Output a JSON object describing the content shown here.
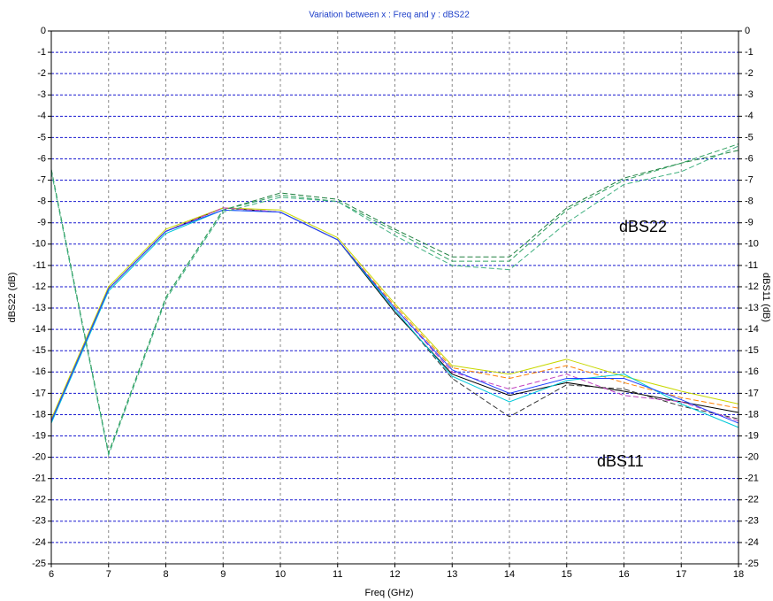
{
  "chart_data": {
    "type": "line",
    "title": "Variation between  x : Freq and y : dBS22",
    "x_label": "Freq (GHz)",
    "y_label": "dBS22 (dB)",
    "y2_label": "dBS11 (dB)",
    "annotations": [
      "dBS22",
      "dBS11"
    ],
    "x": [
      6,
      7,
      8,
      9,
      10,
      11,
      12,
      13,
      14,
      15,
      16,
      17,
      18
    ],
    "xlim": [
      6,
      18
    ],
    "xticks": [
      6,
      7,
      8,
      9,
      10,
      11,
      12,
      13,
      14,
      15,
      16,
      17,
      18
    ],
    "ylim": [
      -25,
      0
    ],
    "yticks": [
      0,
      -1,
      -2,
      -3,
      -4,
      -5,
      -6,
      -7,
      -8,
      -9,
      -10,
      -11,
      -12,
      -13,
      -14,
      -15,
      -16,
      -17,
      -18,
      -19,
      -20,
      -21,
      -22,
      -23,
      -24,
      -25
    ],
    "y2lim": [
      -25,
      0
    ],
    "y2ticks": [
      0,
      -1,
      -2,
      -3,
      -4,
      -5,
      -6,
      -7,
      -8,
      -9,
      -10,
      -11,
      -12,
      -13,
      -14,
      -15,
      -16,
      -17,
      -18,
      -19,
      -20,
      -21,
      -22,
      -23,
      -24,
      -25
    ],
    "grid": true,
    "series": [
      {
        "color": "#000000",
        "dashed": false,
        "values": [
          -18.3,
          -12.1,
          -9.4,
          -8.3,
          -8.5,
          -9.8,
          -13.2,
          -16.1,
          -17.1,
          -16.5,
          -16.9,
          -17.4,
          -17.9
        ]
      },
      {
        "color": "#333333",
        "dashed": true,
        "values": [
          -18.3,
          -12.1,
          -9.4,
          -8.3,
          -8.5,
          -9.8,
          -13.1,
          -16.3,
          -18.1,
          -16.6,
          -16.8,
          -17.6,
          -18.2
        ]
      },
      {
        "color": "#c8d800",
        "dashed": false,
        "values": [
          -18.2,
          -12.0,
          -9.3,
          -8.3,
          -8.4,
          -9.7,
          -12.8,
          -15.7,
          -16.1,
          -15.4,
          -16.2,
          -16.9,
          -17.5
        ]
      },
      {
        "color": "#ff8000",
        "dashed": true,
        "values": [
          -18.3,
          -12.1,
          -9.4,
          -8.3,
          -8.5,
          -9.8,
          -12.9,
          -15.8,
          -16.3,
          -15.7,
          -16.5,
          -17.2,
          -17.7
        ]
      },
      {
        "color": "#00c8d8",
        "dashed": false,
        "values": [
          -18.4,
          -12.2,
          -9.5,
          -8.4,
          -8.5,
          -9.8,
          -13.1,
          -16.2,
          -17.4,
          -16.4,
          -16.1,
          -17.5,
          -18.6
        ]
      },
      {
        "color": "#c040c0",
        "dashed": true,
        "values": [
          -18.3,
          -12.1,
          -9.4,
          -8.3,
          -8.5,
          -9.8,
          -13.0,
          -16.0,
          -16.8,
          -16.1,
          -17.1,
          -17.4,
          -18.3
        ]
      },
      {
        "color": "#2040ff",
        "dashed": false,
        "values": [
          -18.3,
          -12.1,
          -9.4,
          -8.4,
          -8.5,
          -9.8,
          -13.0,
          -15.9,
          -17.0,
          -16.3,
          -16.3,
          -17.3,
          -18.4
        ]
      },
      {
        "color": "#208040",
        "dashed": true,
        "values": [
          -6.5,
          -19.8,
          -12.5,
          -8.4,
          -7.6,
          -7.9,
          -9.3,
          -10.6,
          -10.6,
          -8.3,
          -6.9,
          -6.2,
          -5.6
        ]
      },
      {
        "color": "#30a060",
        "dashed": true,
        "values": [
          -6.5,
          -19.8,
          -12.5,
          -8.4,
          -7.7,
          -8.0,
          -9.4,
          -10.8,
          -10.8,
          -8.4,
          -7.0,
          -6.2,
          -5.3
        ]
      },
      {
        "color": "#40b080",
        "dashed": true,
        "values": [
          -6.6,
          -19.9,
          -12.6,
          -8.5,
          -7.8,
          -8.0,
          -9.6,
          -11.0,
          -11.2,
          -9.0,
          -7.2,
          -6.6,
          -5.4
        ]
      }
    ]
  }
}
